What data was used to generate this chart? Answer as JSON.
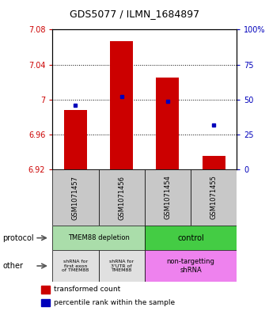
{
  "title": "GDS5077 / ILMN_1684897",
  "samples": [
    "GSM1071457",
    "GSM1071456",
    "GSM1071454",
    "GSM1071455"
  ],
  "red_values": [
    6.988,
    7.067,
    7.025,
    6.936
  ],
  "blue_values": [
    46,
    52,
    49,
    32
  ],
  "ylim_left": [
    6.92,
    7.08
  ],
  "yticks_left": [
    6.92,
    6.96,
    7.0,
    7.04,
    7.08
  ],
  "ytick_labels_left": [
    "6.92",
    "6.96",
    "7",
    "7.04",
    "7.08"
  ],
  "ylim_right": [
    0,
    100
  ],
  "yticks_right": [
    0,
    25,
    50,
    75,
    100
  ],
  "ytick_labels_right": [
    "0",
    "25",
    "50",
    "75",
    "100%"
  ],
  "bar_bottom": 6.92,
  "red_color": "#cc0000",
  "blue_color": "#0000bb",
  "bar_width": 0.5,
  "legend_red": "transformed count",
  "legend_blue": "percentile rank within the sample",
  "protocol_left_color": "#aaddaa",
  "protocol_right_color": "#44cc44",
  "other_left_color": "#e0e0e0",
  "other_right_color": "#ee82ee",
  "label_bg_color": "#c8c8c8"
}
